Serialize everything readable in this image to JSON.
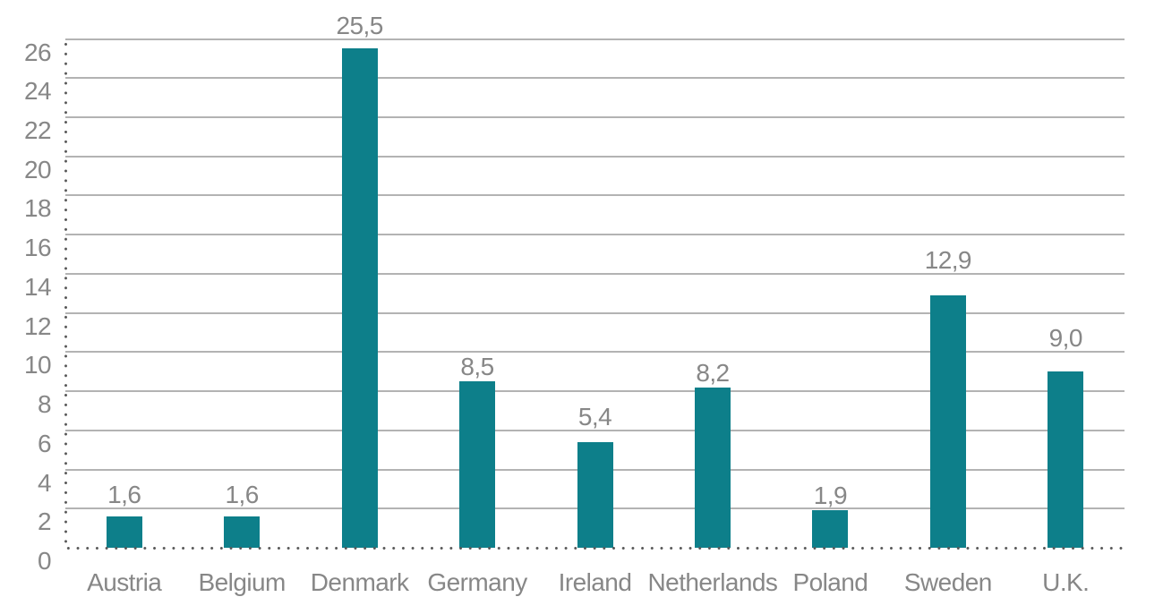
{
  "chart_data": {
    "type": "bar",
    "title": "",
    "xlabel": "",
    "ylabel": "",
    "categories": [
      "Austria",
      "Belgium",
      "Denmark",
      "Germany",
      "Ireland",
      "Netherlands",
      "Poland",
      "Sweden",
      "U.K."
    ],
    "values": [
      1.6,
      1.6,
      25.5,
      8.5,
      5.4,
      8.2,
      1.9,
      12.9,
      9.0
    ],
    "value_labels": [
      "1,6",
      "1,6",
      "25,5",
      "8,5",
      "5,4",
      "8,2",
      "1,9",
      "12,9",
      "9,0"
    ],
    "decimal_separator": ",",
    "ylim": [
      0,
      26
    ],
    "yticks": [
      0,
      2,
      4,
      6,
      8,
      10,
      12,
      14,
      16,
      18,
      20,
      22,
      24,
      26
    ],
    "grid": "horizontal solid lines at each y tick; zero baseline and y axis drawn as dotted lines",
    "legend": "none",
    "colors": {
      "bar": "#0d7f8a",
      "gridline": "#b3b3b3",
      "axis_dots": "#595959",
      "text": "#878787",
      "background": "#ffffff"
    }
  }
}
